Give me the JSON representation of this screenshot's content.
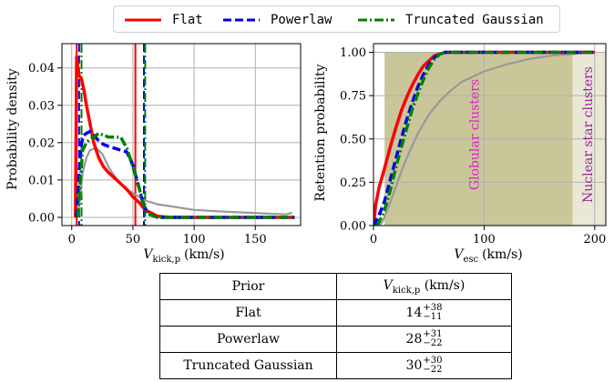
{
  "legend": {
    "items": [
      {
        "label": "Flat",
        "color": "#ff0000",
        "dash": "solid"
      },
      {
        "label": "Powerlaw",
        "color": "#0000ee",
        "dash": "dashed"
      },
      {
        "label": "Truncated Gaussian",
        "color": "#008000",
        "dash": "dashdot"
      }
    ]
  },
  "chart_data": [
    {
      "type": "line",
      "xlabel_main": "V",
      "xlabel_sub": "kick,p",
      "xlabel_unit": "(km/s)",
      "ylabel": "Probability density",
      "xlim": [
        -8,
        187
      ],
      "ylim": [
        -0.0022,
        0.0465
      ],
      "xticks": [
        0,
        50,
        100,
        150
      ],
      "yticks": [
        0.0,
        0.01,
        0.02,
        0.03,
        0.04
      ],
      "ytick_labels": [
        "0.00",
        "0.01",
        "0.02",
        "0.03",
        "0.04"
      ],
      "grid": true,
      "series": [
        {
          "name": "Gray reference",
          "color": "#999999",
          "dash": "solid",
          "x": [
            5,
            7,
            9,
            12,
            15,
            20,
            25,
            30,
            35,
            40,
            45,
            50,
            55,
            60,
            70,
            80,
            90,
            100,
            120,
            140,
            160,
            175,
            180
          ],
          "y": [
            0.0,
            0.006,
            0.012,
            0.016,
            0.018,
            0.0185,
            0.017,
            0.0135,
            0.011,
            0.009,
            0.0075,
            0.0065,
            0.0055,
            0.0045,
            0.0035,
            0.003,
            0.0025,
            0.002,
            0.0016,
            0.0013,
            0.001,
            0.0008,
            0.0012
          ]
        },
        {
          "name": "Flat",
          "color": "#ff0000",
          "dash": "solid",
          "x": [
            3,
            4,
            5,
            6,
            8,
            10,
            12,
            15,
            18,
            22,
            26,
            30,
            35,
            40,
            45,
            50,
            55,
            60,
            70,
            80,
            100,
            120,
            150,
            182
          ],
          "y": [
            0.0,
            0.043,
            0.04,
            0.038,
            0.037,
            0.034,
            0.03,
            0.025,
            0.02,
            0.016,
            0.0135,
            0.012,
            0.0105,
            0.009,
            0.0075,
            0.0055,
            0.004,
            0.002,
            0.0003,
            0.0,
            0.0,
            0.0,
            0.0,
            0.0
          ]
        },
        {
          "name": "Powerlaw",
          "color": "#0000ee",
          "dash": "dashed",
          "x": [
            4,
            6,
            8,
            10,
            12,
            15,
            18,
            22,
            26,
            30,
            35,
            40,
            45,
            50,
            55,
            58,
            62,
            70,
            80,
            100,
            130,
            182
          ],
          "y": [
            0.0,
            0.012,
            0.02,
            0.022,
            0.0225,
            0.023,
            0.022,
            0.0205,
            0.0195,
            0.019,
            0.0185,
            0.018,
            0.0175,
            0.014,
            0.008,
            0.004,
            0.001,
            0.0,
            0.0,
            0.0,
            0.0,
            0.0
          ]
        },
        {
          "name": "Truncated Gaussian",
          "color": "#008000",
          "dash": "dashdot",
          "x": [
            5,
            7,
            9,
            12,
            15,
            18,
            22,
            26,
            30,
            35,
            40,
            45,
            50,
            55,
            58,
            62,
            70,
            80,
            100,
            130,
            182
          ],
          "y": [
            0.0,
            0.01,
            0.018,
            0.02,
            0.021,
            0.0215,
            0.0225,
            0.022,
            0.0215,
            0.0215,
            0.0215,
            0.0185,
            0.0135,
            0.008,
            0.004,
            0.001,
            0.0,
            0.0,
            0.0,
            0.0,
            0.0
          ]
        }
      ],
      "vlines": [
        {
          "x": 4,
          "color": "#ff0000",
          "dash": "solid"
        },
        {
          "x": 52,
          "color": "#ff0000",
          "dash": "solid"
        },
        {
          "x": 6,
          "color": "#0000ee",
          "dash": "dashed"
        },
        {
          "x": 59,
          "color": "#0000ee",
          "dash": "dashed"
        },
        {
          "x": 8,
          "color": "#008000",
          "dash": "dashdot"
        },
        {
          "x": 60,
          "color": "#008000",
          "dash": "dashdot"
        }
      ]
    },
    {
      "type": "line",
      "xlabel_main": "V",
      "xlabel_sub": "esc",
      "xlabel_unit": "(km/s)",
      "ylabel": "Retention probability",
      "xlim": [
        0,
        210
      ],
      "ylim": [
        0.0,
        1.05
      ],
      "xticks": [
        0,
        100,
        200
      ],
      "yticks": [
        0.0,
        0.25,
        0.5,
        0.75,
        1.0
      ],
      "ytick_labels": [
        "0.00",
        "0.25",
        "0.50",
        "0.75",
        "1.00"
      ],
      "grid": true,
      "regions": [
        {
          "label": "Globular clusters",
          "x0": 10,
          "x1": 180,
          "y0": 0.0,
          "y1": 1.0,
          "color": "#c9c69a",
          "text_color": "#e01fc9"
        },
        {
          "label": "Nuclear star clusters",
          "x0": 180,
          "x1": 210,
          "y0": 0.0,
          "y1": 1.0,
          "color": "#e9e8d6",
          "text_color": "#9a1f96"
        }
      ],
      "series": [
        {
          "name": "Gray reference",
          "color": "#999999",
          "dash": "solid",
          "x": [
            5,
            8,
            10,
            15,
            20,
            25,
            30,
            40,
            50,
            60,
            70,
            80,
            100,
            120,
            140,
            160,
            180,
            200
          ],
          "y": [
            0.0,
            0.02,
            0.05,
            0.13,
            0.22,
            0.31,
            0.39,
            0.53,
            0.64,
            0.72,
            0.78,
            0.83,
            0.89,
            0.93,
            0.96,
            0.98,
            0.99,
            1.0
          ]
        },
        {
          "name": "Flat",
          "color": "#ff0000",
          "dash": "solid",
          "x": [
            0,
            2,
            5,
            10,
            15,
            20,
            25,
            30,
            35,
            40,
            45,
            50,
            55,
            60,
            65,
            70,
            80,
            100,
            150,
            200
          ],
          "y": [
            0.0,
            0.12,
            0.22,
            0.33,
            0.45,
            0.56,
            0.66,
            0.74,
            0.81,
            0.87,
            0.92,
            0.95,
            0.98,
            0.99,
            1.0,
            1.0,
            1.0,
            1.0,
            1.0,
            1.0
          ]
        },
        {
          "name": "Powerlaw",
          "color": "#0000ee",
          "dash": "dashed",
          "x": [
            0,
            5,
            10,
            15,
            20,
            25,
            30,
            35,
            40,
            45,
            50,
            55,
            60,
            65,
            70,
            80,
            100,
            150,
            200
          ],
          "y": [
            0.0,
            0.06,
            0.14,
            0.26,
            0.38,
            0.5,
            0.61,
            0.71,
            0.8,
            0.87,
            0.93,
            0.97,
            0.99,
            1.0,
            1.0,
            1.0,
            1.0,
            1.0,
            1.0
          ]
        },
        {
          "name": "Truncated Gaussian",
          "color": "#008000",
          "dash": "dashdot",
          "x": [
            3,
            5,
            10,
            15,
            20,
            25,
            30,
            35,
            40,
            45,
            50,
            55,
            60,
            65,
            70,
            80,
            100,
            150,
            200
          ],
          "y": [
            0.0,
            0.02,
            0.09,
            0.2,
            0.33,
            0.45,
            0.56,
            0.67,
            0.76,
            0.84,
            0.91,
            0.96,
            0.99,
            1.0,
            1.0,
            1.0,
            1.0,
            1.0,
            1.0
          ]
        }
      ]
    }
  ],
  "table": {
    "header": {
      "prior": "Prior",
      "value_main": "V",
      "value_sub": "kick,p",
      "value_unit": "(km/s)"
    },
    "rows": [
      {
        "prior": "Flat",
        "value": "14",
        "plus": "+38",
        "minus": "−11"
      },
      {
        "prior": "Powerlaw",
        "value": "28",
        "plus": "+31",
        "minus": "−22"
      },
      {
        "prior": "Truncated Gaussian",
        "value": "30",
        "plus": "+30",
        "minus": "−22"
      }
    ]
  }
}
